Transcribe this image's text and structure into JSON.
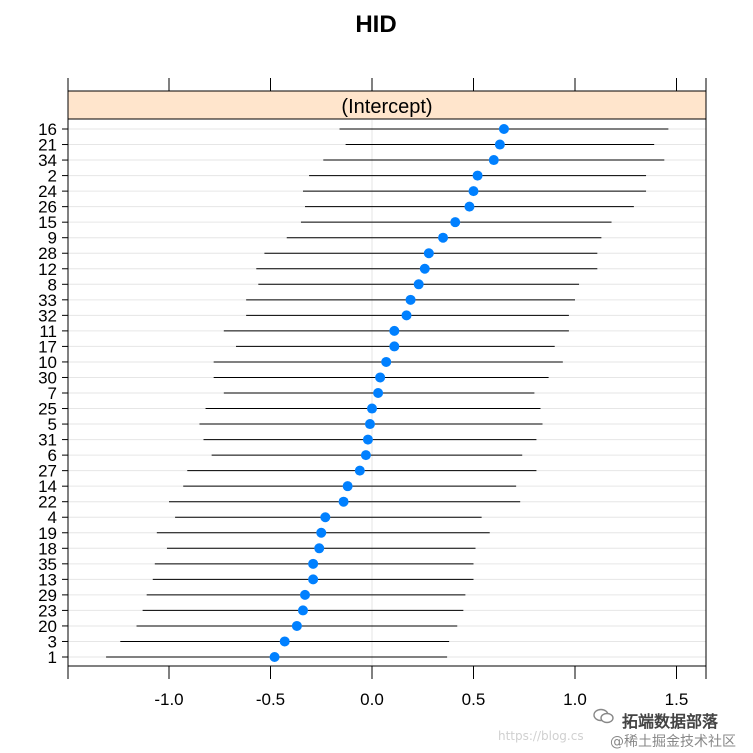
{
  "chart_data": {
    "type": "dotplot",
    "title": "HID",
    "strip_label": "(Intercept)",
    "xlim": [
      -1.5,
      1.65
    ],
    "x_ticks": [
      -1.0,
      -0.5,
      0.0,
      0.5,
      1.0,
      1.5
    ],
    "x_tick_labels": [
      "-1.0",
      "-0.5",
      "0.0",
      "0.5",
      "1.0",
      "1.5"
    ],
    "grid": true,
    "colors": {
      "point": "#0080ff",
      "interval": "#000000",
      "strip": "#ffe5cc",
      "grid": "#e6e6e6"
    },
    "categories": [
      "16",
      "21",
      "34",
      "2",
      "24",
      "26",
      "15",
      "9",
      "28",
      "12",
      "8",
      "33",
      "32",
      "11",
      "17",
      "10",
      "30",
      "7",
      "25",
      "5",
      "31",
      "6",
      "27",
      "14",
      "22",
      "4",
      "19",
      "18",
      "35",
      "13",
      "29",
      "23",
      "20",
      "3",
      "1"
    ],
    "estimates": [
      0.65,
      0.63,
      0.6,
      0.52,
      0.5,
      0.48,
      0.41,
      0.35,
      0.28,
      0.26,
      0.23,
      0.19,
      0.17,
      0.11,
      0.11,
      0.07,
      0.04,
      0.03,
      0.0,
      -0.01,
      -0.02,
      -0.03,
      -0.06,
      -0.12,
      -0.14,
      -0.23,
      -0.25,
      -0.26,
      -0.29,
      -0.29,
      -0.33,
      -0.34,
      -0.37,
      -0.43,
      -0.48
    ],
    "lower": [
      -0.16,
      -0.13,
      -0.24,
      -0.31,
      -0.34,
      -0.33,
      -0.35,
      -0.42,
      -0.53,
      -0.57,
      -0.56,
      -0.62,
      -0.62,
      -0.73,
      -0.67,
      -0.78,
      -0.78,
      -0.73,
      -0.82,
      -0.85,
      -0.83,
      -0.79,
      -0.91,
      -0.93,
      -1.0,
      -0.97,
      -1.06,
      -1.01,
      -1.07,
      -1.08,
      -1.11,
      -1.13,
      -1.16,
      -1.24,
      -1.31
    ],
    "upper": [
      1.46,
      1.39,
      1.44,
      1.35,
      1.35,
      1.29,
      1.18,
      1.13,
      1.11,
      1.11,
      1.02,
      1.0,
      0.97,
      0.97,
      0.9,
      0.94,
      0.87,
      0.8,
      0.83,
      0.84,
      0.81,
      0.74,
      0.81,
      0.71,
      0.73,
      0.54,
      0.58,
      0.51,
      0.5,
      0.5,
      0.46,
      0.45,
      0.42,
      0.38,
      0.37
    ]
  },
  "watermark": {
    "line1": "拓端数据部落",
    "line2": "@稀土掘金技术社区",
    "faint": "https://blog.cs"
  }
}
